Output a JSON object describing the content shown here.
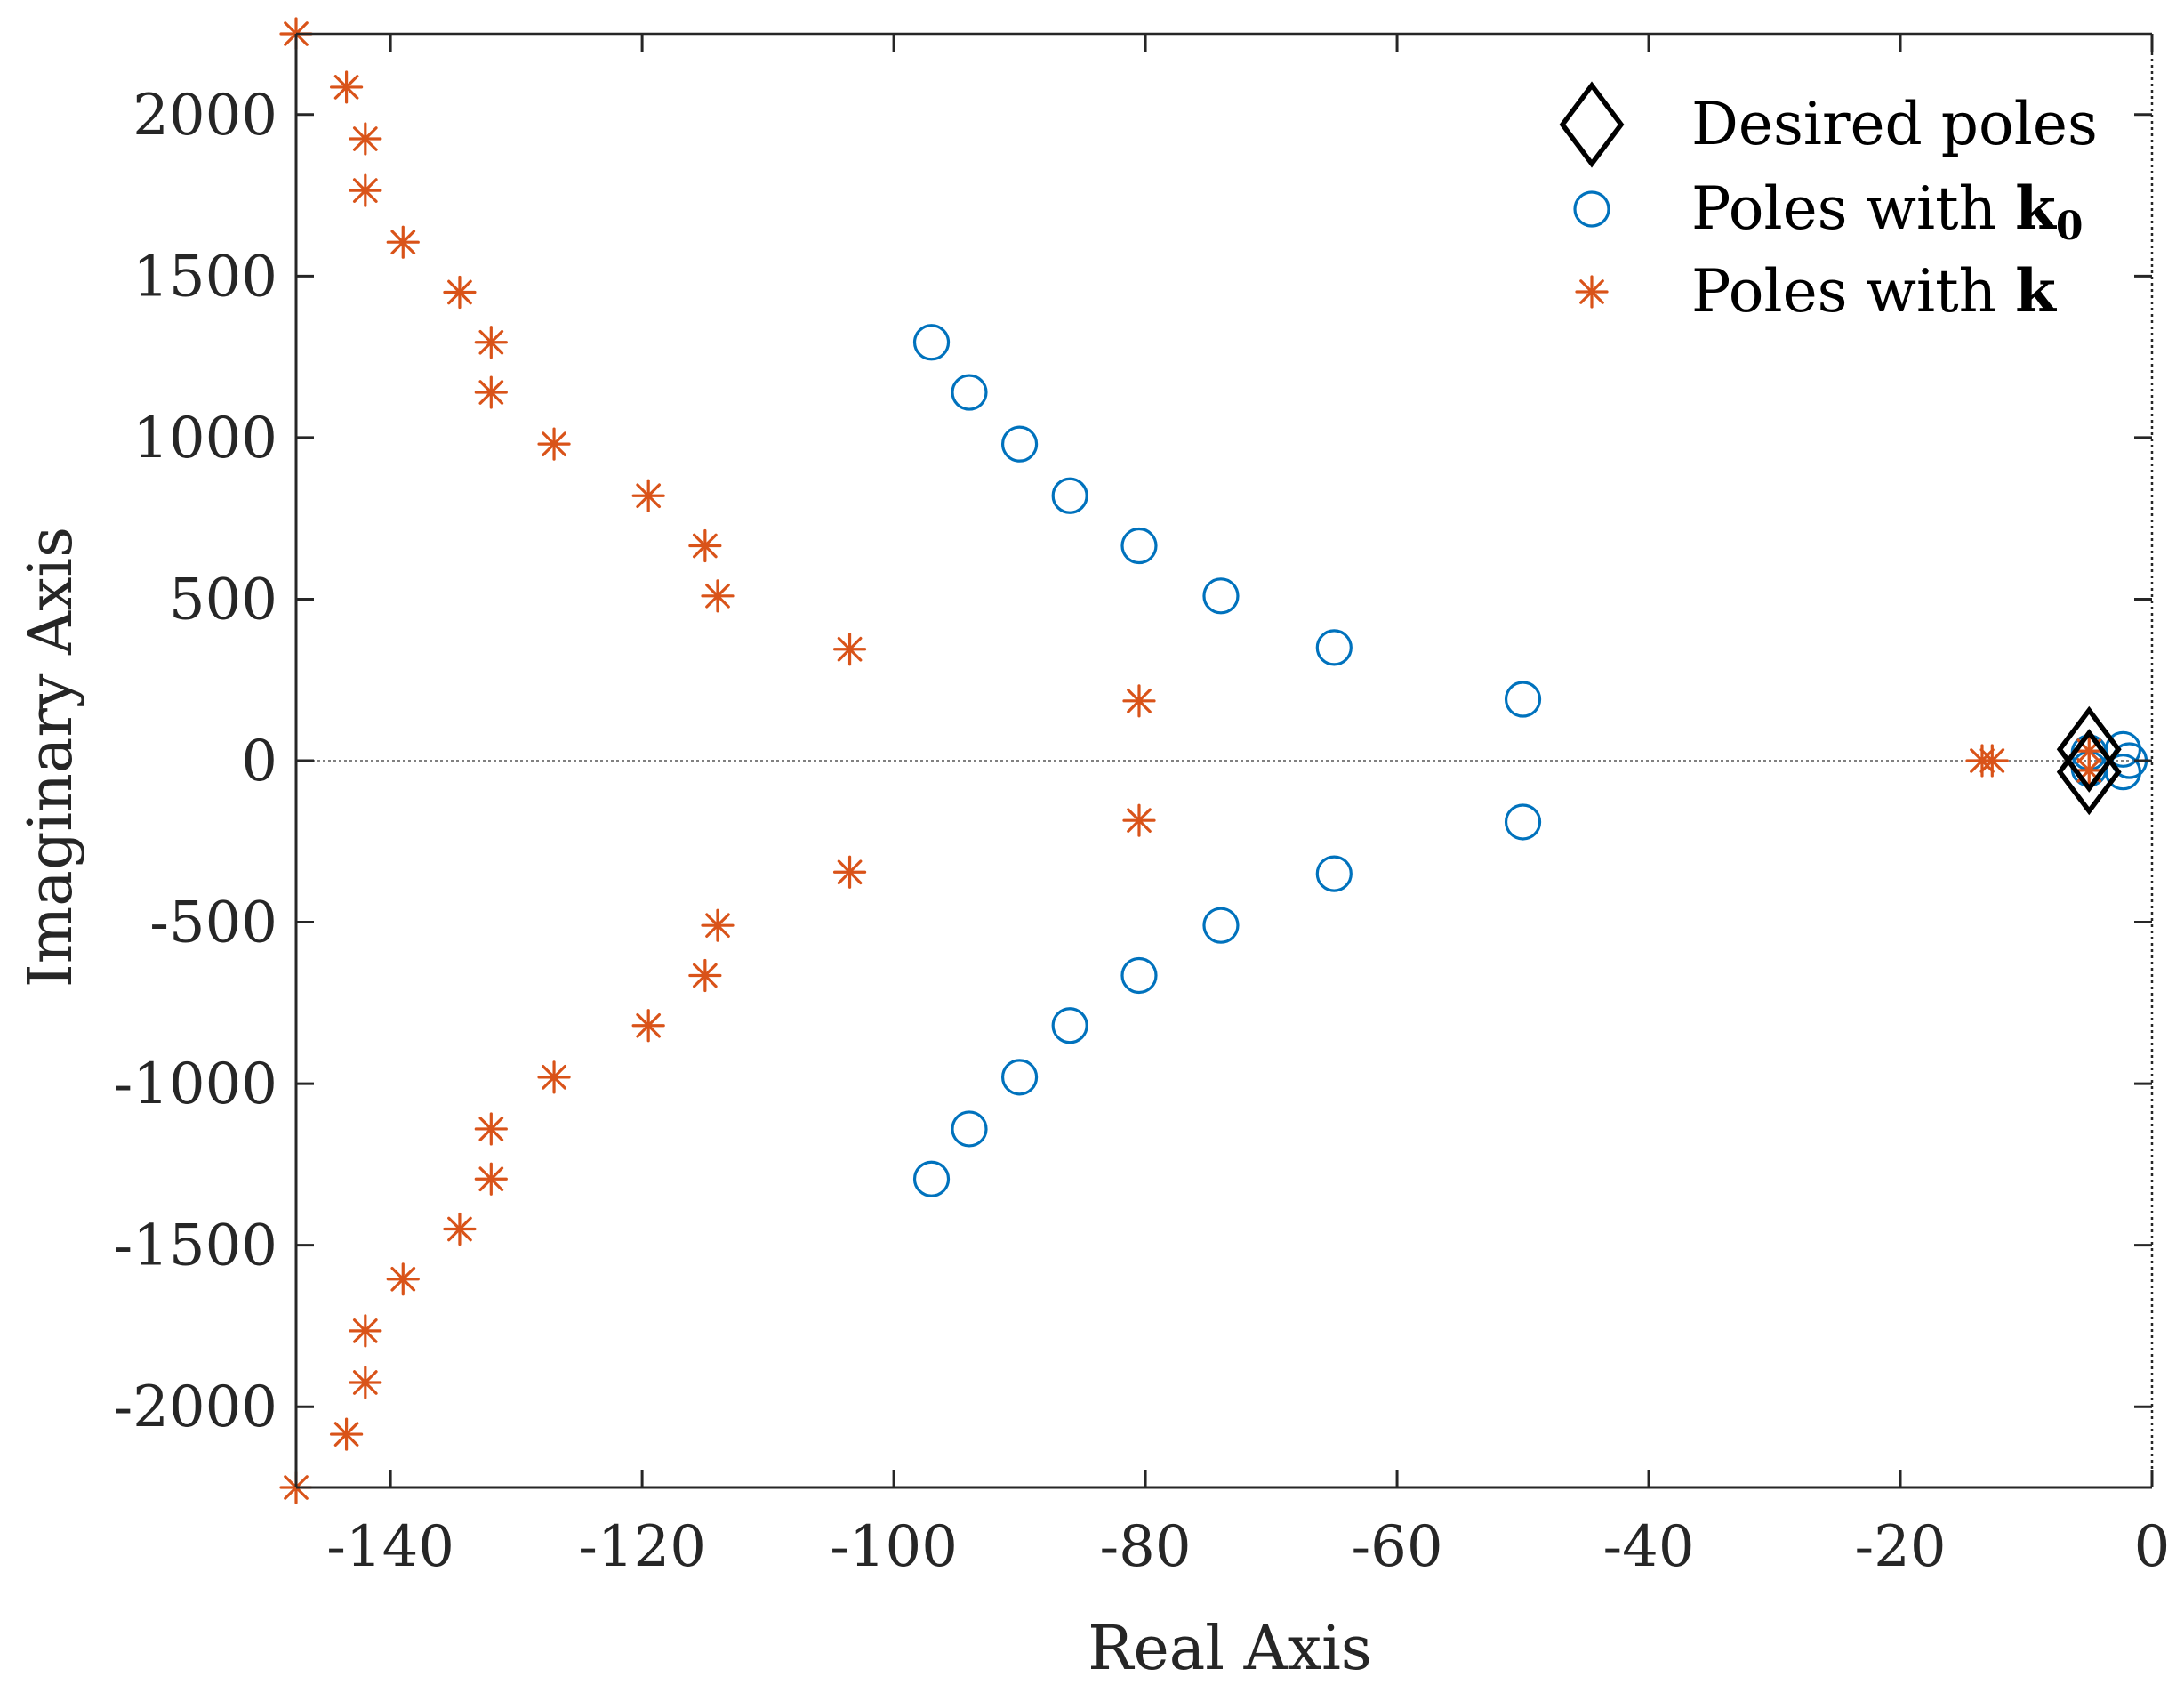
{
  "chart_data": {
    "type": "scatter",
    "title": "",
    "xlabel": "Real Axis",
    "ylabel": "Imaginary Axis",
    "xlim": [
      -147.5,
      0
    ],
    "ylim": [
      -2250,
      2250
    ],
    "xticks": [
      -140,
      -120,
      -100,
      -80,
      -60,
      -40,
      -20,
      0
    ],
    "xtick_labels": [
      "-140",
      "-120",
      "-100",
      "-80",
      "-60",
      "-40",
      "-20",
      "0"
    ],
    "yticks": [
      2000,
      1500,
      1000,
      500,
      0,
      -500,
      -1000,
      -1500,
      -2000
    ],
    "ytick_labels": [
      "2000",
      "1500",
      "1000",
      "500",
      "0",
      "-500",
      "-1000",
      "-1500",
      "-2000"
    ],
    "grid": false,
    "legend_position": "top-right",
    "legend": [
      {
        "label": "Desired poles",
        "sub": "",
        "marker": "diamond",
        "color": "#000000"
      },
      {
        "label": "Poles with ",
        "bold": "k",
        "sub": "0",
        "marker": "circle",
        "color": "#0072BD"
      },
      {
        "label": "Poles with ",
        "bold": "k",
        "sub": "",
        "marker": "asterisk",
        "color": "#D95319"
      }
    ],
    "colors": {
      "desired": "#000000",
      "k0": "#0072BD",
      "k": "#D95319",
      "axis": "#262626",
      "zero_line": "#808080"
    },
    "series": [
      {
        "name": "Desired poles",
        "marker": "diamond",
        "points": [
          [
            -5,
            35
          ],
          [
            -5,
            -35
          ]
        ]
      },
      {
        "name": "Poles with k0",
        "marker": "circle",
        "points": [
          [
            -97,
            1295
          ],
          [
            -94,
            1140
          ],
          [
            -90,
            980
          ],
          [
            -86,
            820
          ],
          [
            -80.5,
            665
          ],
          [
            -74,
            510
          ],
          [
            -65,
            350
          ],
          [
            -50,
            190
          ],
          [
            -97,
            -1295
          ],
          [
            -94,
            -1140
          ],
          [
            -90,
            -980
          ],
          [
            -86,
            -820
          ],
          [
            -80.5,
            -665
          ],
          [
            -74,
            -510
          ],
          [
            -65,
            -350
          ],
          [
            -50,
            -190
          ],
          [
            -5,
            25
          ],
          [
            -5,
            -25
          ],
          [
            -2.3,
            35
          ],
          [
            -2.3,
            -35
          ],
          [
            -1.8,
            0
          ]
        ]
      },
      {
        "name": "Poles with k",
        "marker": "asterisk",
        "points": [
          [
            -147.5,
            2250
          ],
          [
            -143.5,
            2085
          ],
          [
            -142,
            1925
          ],
          [
            -142,
            1765
          ],
          [
            -139,
            1605
          ],
          [
            -134.5,
            1450
          ],
          [
            -132,
            1295
          ],
          [
            -132,
            1140
          ],
          [
            -127,
            980
          ],
          [
            -119.5,
            820
          ],
          [
            -115,
            665
          ],
          [
            -114,
            510
          ],
          [
            -103.5,
            345
          ],
          [
            -80.5,
            185
          ],
          [
            -147.5,
            -2250
          ],
          [
            -143.5,
            -2085
          ],
          [
            -142,
            -1925
          ],
          [
            -142,
            -1765
          ],
          [
            -139,
            -1605
          ],
          [
            -134.5,
            -1450
          ],
          [
            -132,
            -1295
          ],
          [
            -132,
            -1140
          ],
          [
            -127,
            -980
          ],
          [
            -119.5,
            -820
          ],
          [
            -115,
            -665
          ],
          [
            -114,
            -510
          ],
          [
            -103.5,
            -345
          ],
          [
            -80.5,
            -185
          ],
          [
            -13.5,
            0
          ],
          [
            -12.7,
            0
          ],
          [
            -5,
            30
          ],
          [
            -5,
            -30
          ]
        ]
      }
    ]
  }
}
